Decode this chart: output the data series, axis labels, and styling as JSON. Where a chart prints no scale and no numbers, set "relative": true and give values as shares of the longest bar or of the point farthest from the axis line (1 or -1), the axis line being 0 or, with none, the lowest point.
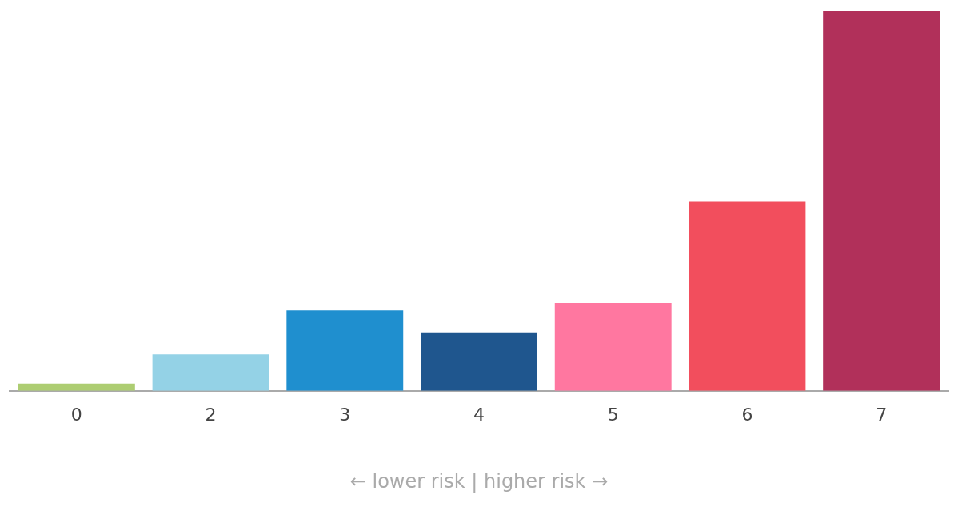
{
  "chart_data": {
    "type": "bar",
    "relative": true,
    "xlabel": "← lower risk | higher risk →",
    "categories": [
      "0",
      "2",
      "3",
      "4",
      "5",
      "6",
      "7"
    ],
    "values": [
      0.019,
      0.096,
      0.212,
      0.154,
      0.231,
      0.5,
      1
    ],
    "colors": [
      "#adcd72",
      "#94d2e6",
      "#1f8fcf",
      "#1f568e",
      "#ff77a0",
      "#f24e5d",
      "#b1305a"
    ],
    "grid": false,
    "legend": false
  }
}
